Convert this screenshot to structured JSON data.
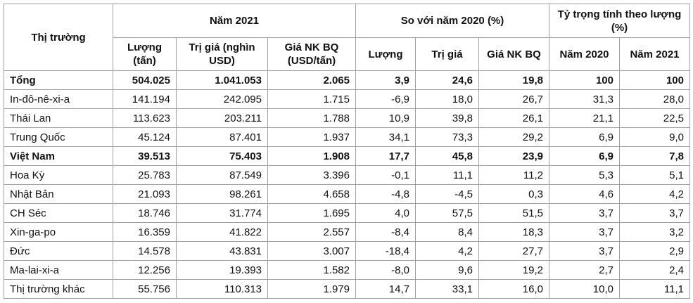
{
  "table": {
    "header": {
      "market": "Thị trường",
      "groups": [
        "Năm 2021",
        "So với năm 2020 (%)",
        "Tỷ trọng tính theo lượng (%)"
      ],
      "subheaders": [
        "Lượng (tấn)",
        "Trị giá (nghìn USD)",
        "Giá NK BQ (USD/tấn)",
        "Lượng",
        "Trị giá",
        "Giá NK BQ",
        "Năm 2020",
        "Năm 2021"
      ]
    },
    "rows": [
      {
        "bold": true,
        "cells": [
          "Tổng",
          "504.025",
          "1.041.053",
          "2.065",
          "3,9",
          "24,6",
          "19,8",
          "100",
          "100"
        ]
      },
      {
        "bold": false,
        "cells": [
          "In-đô-nê-xi-a",
          "141.194",
          "242.095",
          "1.715",
          "-6,9",
          "18,0",
          "26,7",
          "31,3",
          "28,0"
        ]
      },
      {
        "bold": false,
        "cells": [
          "Thái Lan",
          "113.623",
          "203.211",
          "1.788",
          "10,9",
          "39,8",
          "26,1",
          "21,1",
          "22,5"
        ]
      },
      {
        "bold": false,
        "cells": [
          "Trung Quốc",
          "45.124",
          "87.401",
          "1.937",
          "34,1",
          "73,3",
          "29,2",
          "6,9",
          "9,0"
        ]
      },
      {
        "bold": true,
        "cells": [
          "Việt Nam",
          "39.513",
          "75.403",
          "1.908",
          "17,7",
          "45,8",
          "23,9",
          "6,9",
          "7,8"
        ]
      },
      {
        "bold": false,
        "cells": [
          "Hoa Kỳ",
          "25.783",
          "87.549",
          "3.396",
          "-0,1",
          "11,1",
          "11,2",
          "5,3",
          "5,1"
        ]
      },
      {
        "bold": false,
        "cells": [
          "Nhật Bản",
          "21.093",
          "98.261",
          "4.658",
          "-4,8",
          "-4,5",
          "0,3",
          "4,6",
          "4,2"
        ]
      },
      {
        "bold": false,
        "cells": [
          "CH Séc",
          "18.746",
          "31.774",
          "1.695",
          "4,0",
          "57,5",
          "51,5",
          "3,7",
          "3,7"
        ]
      },
      {
        "bold": false,
        "cells": [
          "Xin-ga-po",
          "16.359",
          "41.822",
          "2.557",
          "-8,4",
          "8,4",
          "18,3",
          "3,7",
          "3,2"
        ]
      },
      {
        "bold": false,
        "cells": [
          "Đức",
          "14.578",
          "43.831",
          "3.007",
          "-18,4",
          "4,2",
          "27,7",
          "3,7",
          "2,9"
        ]
      },
      {
        "bold": false,
        "cells": [
          "Ma-lai-xi-a",
          "12.256",
          "19.393",
          "1.582",
          "-8,0",
          "9,6",
          "19,2",
          "2,7",
          "2,4"
        ]
      },
      {
        "bold": false,
        "cells": [
          "Thị trường khác",
          "55.756",
          "110.313",
          "1.979",
          "14,7",
          "33,1",
          "16,0",
          "10,0",
          "11,1"
        ]
      }
    ]
  }
}
